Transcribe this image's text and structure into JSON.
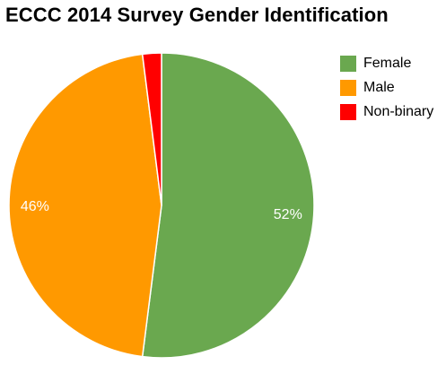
{
  "chart_data": {
    "type": "pie",
    "title": "ECCC 2014 Survey Gender Identification",
    "categories": [
      "Female",
      "Male",
      "Non-binary"
    ],
    "values": [
      52,
      46,
      2
    ],
    "data_labels": [
      "52%",
      "46%",
      ""
    ],
    "colors": [
      "#6aa84f",
      "#ff9900",
      "#ff0000"
    ],
    "start_angle": "top (12 o'clock)",
    "direction": "clockwise",
    "legend": {
      "position": "right",
      "items": [
        {
          "label": "Female",
          "color": "#6aa84f"
        },
        {
          "label": "Male",
          "color": "#ff9900"
        },
        {
          "label": "Non-binary",
          "color": "#ff0000"
        }
      ]
    }
  }
}
